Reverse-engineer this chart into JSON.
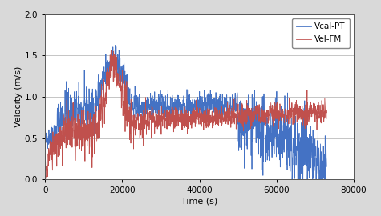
{
  "title": "",
  "xlabel": "Time (s)",
  "ylabel": "Velocity (m/s)",
  "xlim": [
    0,
    80000
  ],
  "ylim": [
    0,
    2
  ],
  "yticks": [
    0,
    0.5,
    1.0,
    1.5,
    2.0
  ],
  "xticks": [
    0,
    20000,
    40000,
    60000,
    80000
  ],
  "color_pt": "#4472C4",
  "color_fm": "#C0504D",
  "legend_labels": [
    "Vcal-PT",
    "Vel-FM"
  ],
  "bg_color": "#D9D9D9",
  "plot_bg": "#FFFFFF",
  "seed": 42,
  "n_pts": 1500,
  "t_end": 73000
}
